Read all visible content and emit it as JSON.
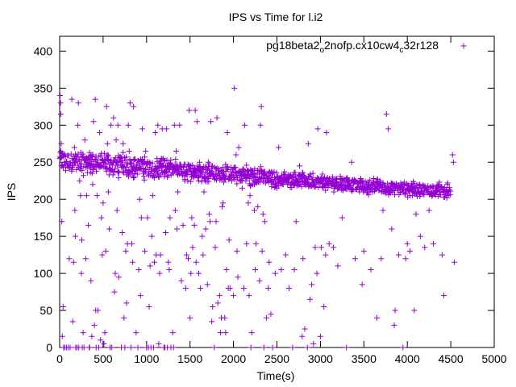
{
  "chart_data": {
    "type": "scatter",
    "title": "IPS vs Time for l.i2",
    "xlabel": "Time(s)",
    "ylabel": "IPS",
    "xlim": [
      0,
      5000
    ],
    "ylim": [
      0,
      420
    ],
    "xticks": [
      "0",
      "500",
      "1000",
      "1500",
      "2000",
      "2500",
      "3000",
      "3500",
      "4000",
      "4500",
      "5000"
    ],
    "yticks": [
      "0",
      "50",
      "100",
      "150",
      "200",
      "250",
      "300",
      "350",
      "400"
    ],
    "grid": false,
    "legend_position": "top-right",
    "series": [
      {
        "name_parts": [
          "pg18beta2",
          "o",
          "2nofp.cx10cw4",
          "c",
          "32r128"
        ],
        "color": "#9400d3",
        "marker": "plus",
        "x": [],
        "y": []
      }
    ],
    "main_band": [
      [
        0,
        252
      ],
      [
        500,
        248
      ],
      [
        1000,
        243
      ],
      [
        1500,
        238
      ],
      [
        2000,
        235
      ],
      [
        2500,
        228
      ],
      [
        3000,
        223
      ],
      [
        3500,
        218
      ],
      [
        4000,
        214
      ],
      [
        4450,
        212
      ]
    ],
    "points": [
      [
        5,
        340
      ],
      [
        10,
        330
      ],
      [
        12,
        315
      ],
      [
        18,
        275
      ],
      [
        20,
        245
      ],
      [
        25,
        170
      ],
      [
        30,
        15
      ],
      [
        40,
        55
      ],
      [
        45,
        0
      ],
      [
        60,
        0
      ],
      [
        80,
        0
      ],
      [
        100,
        0
      ],
      [
        110,
        120
      ],
      [
        120,
        0
      ],
      [
        140,
        335
      ],
      [
        150,
        35
      ],
      [
        160,
        115
      ],
      [
        170,
        270
      ],
      [
        175,
        185
      ],
      [
        180,
        150
      ],
      [
        185,
        0
      ],
      [
        200,
        0
      ],
      [
        210,
        300
      ],
      [
        215,
        330
      ],
      [
        220,
        0
      ],
      [
        230,
        225
      ],
      [
        240,
        205
      ],
      [
        250,
        100
      ],
      [
        255,
        145
      ],
      [
        260,
        0
      ],
      [
        270,
        20
      ],
      [
        280,
        0
      ],
      [
        290,
        280
      ],
      [
        300,
        120
      ],
      [
        310,
        205
      ],
      [
        320,
        255
      ],
      [
        330,
        165
      ],
      [
        340,
        0
      ],
      [
        345,
        0
      ],
      [
        360,
        90
      ],
      [
        370,
        15
      ],
      [
        380,
        220
      ],
      [
        390,
        305
      ],
      [
        400,
        30
      ],
      [
        410,
        335
      ],
      [
        415,
        50
      ],
      [
        420,
        0
      ],
      [
        430,
        205
      ],
      [
        440,
        50
      ],
      [
        450,
        0
      ],
      [
        460,
        290
      ],
      [
        470,
        10
      ],
      [
        480,
        175
      ],
      [
        490,
        125
      ],
      [
        500,
        195
      ],
      [
        510,
        5
      ],
      [
        520,
        20
      ],
      [
        530,
        130
      ],
      [
        540,
        325
      ],
      [
        550,
        275
      ],
      [
        560,
        210
      ],
      [
        570,
        160
      ],
      [
        580,
        0
      ],
      [
        590,
        300
      ],
      [
        600,
        0
      ],
      [
        620,
        310
      ],
      [
        630,
        75
      ],
      [
        640,
        100
      ],
      [
        650,
        280
      ],
      [
        660,
        185
      ],
      [
        670,
        300
      ],
      [
        680,
        95
      ],
      [
        700,
        255
      ],
      [
        710,
        0
      ],
      [
        720,
        155
      ],
      [
        730,
        275
      ],
      [
        740,
        40
      ],
      [
        750,
        0
      ],
      [
        760,
        130
      ],
      [
        770,
        60
      ],
      [
        780,
        140
      ],
      [
        790,
        300
      ],
      [
        800,
        265
      ],
      [
        810,
        330
      ],
      [
        820,
        0
      ],
      [
        830,
        140
      ],
      [
        840,
        115
      ],
      [
        850,
        325
      ],
      [
        860,
        230
      ],
      [
        880,
        20
      ],
      [
        900,
        0
      ],
      [
        910,
        105
      ],
      [
        920,
        200
      ],
      [
        930,
        70
      ],
      [
        940,
        175
      ],
      [
        950,
        295
      ],
      [
        960,
        250
      ],
      [
        980,
        130
      ],
      [
        990,
        265
      ],
      [
        1000,
        0
      ],
      [
        1010,
        175
      ],
      [
        1020,
        0
      ],
      [
        1030,
        55
      ],
      [
        1040,
        110
      ],
      [
        1050,
        0
      ],
      [
        1060,
        150
      ],
      [
        1070,
        205
      ],
      [
        1080,
        0
      ],
      [
        1090,
        115
      ],
      [
        1100,
        290
      ],
      [
        1110,
        125
      ],
      [
        1120,
        255
      ],
      [
        1130,
        300
      ],
      [
        1140,
        5
      ],
      [
        1150,
        100
      ],
      [
        1160,
        125
      ],
      [
        1170,
        255
      ],
      [
        1180,
        295
      ],
      [
        1200,
        0
      ],
      [
        1210,
        0
      ],
      [
        1220,
        155
      ],
      [
        1230,
        295
      ],
      [
        1240,
        0
      ],
      [
        1250,
        115
      ],
      [
        1260,
        105
      ],
      [
        1270,
        175
      ],
      [
        1280,
        0
      ],
      [
        1300,
        20
      ],
      [
        1310,
        0
      ],
      [
        1320,
        300
      ],
      [
        1330,
        185
      ],
      [
        1340,
        265
      ],
      [
        1350,
        160
      ],
      [
        1360,
        210
      ],
      [
        1380,
        300
      ],
      [
        1400,
        90
      ],
      [
        1420,
        165
      ],
      [
        1440,
        225
      ],
      [
        1450,
        80
      ],
      [
        1460,
        125
      ],
      [
        1480,
        120
      ],
      [
        1490,
        320
      ],
      [
        1500,
        40
      ],
      [
        1510,
        100
      ],
      [
        1520,
        175
      ],
      [
        1530,
        135
      ],
      [
        1550,
        165
      ],
      [
        1560,
        320
      ],
      [
        1570,
        115
      ],
      [
        1580,
        305
      ],
      [
        1600,
        100
      ],
      [
        1610,
        250
      ],
      [
        1620,
        80
      ],
      [
        1640,
        150
      ],
      [
        1650,
        125
      ],
      [
        1660,
        210
      ],
      [
        1680,
        160
      ],
      [
        1700,
        85
      ],
      [
        1710,
        250
      ],
      [
        1720,
        180
      ],
      [
        1730,
        170
      ],
      [
        1740,
        305
      ],
      [
        1750,
        35
      ],
      [
        1760,
        55
      ],
      [
        1780,
        0
      ],
      [
        1790,
        135
      ],
      [
        1800,
        170
      ],
      [
        1810,
        310
      ],
      [
        1820,
        60
      ],
      [
        1840,
        70
      ],
      [
        1850,
        20
      ],
      [
        1860,
        40
      ],
      [
        1870,
        190
      ],
      [
        1880,
        195
      ],
      [
        1900,
        40
      ],
      [
        1910,
        20
      ],
      [
        1920,
        105
      ],
      [
        1930,
        290
      ],
      [
        1940,
        80
      ],
      [
        1950,
        145
      ],
      [
        1960,
        80
      ],
      [
        1980,
        225
      ],
      [
        2000,
        70
      ],
      [
        2010,
        350
      ],
      [
        2030,
        260
      ],
      [
        2040,
        130
      ],
      [
        2050,
        95
      ],
      [
        2060,
        270
      ],
      [
        2080,
        225
      ],
      [
        2100,
        215
      ],
      [
        2120,
        80
      ],
      [
        2130,
        300
      ],
      [
        2150,
        140
      ],
      [
        2170,
        195
      ],
      [
        2180,
        70
      ],
      [
        2190,
        205
      ],
      [
        2200,
        0
      ],
      [
        2210,
        20
      ],
      [
        2220,
        220
      ],
      [
        2240,
        185
      ],
      [
        2250,
        105
      ],
      [
        2260,
        140
      ],
      [
        2280,
        190
      ],
      [
        2300,
        90
      ],
      [
        2310,
        300
      ],
      [
        2320,
        325
      ],
      [
        2330,
        130
      ],
      [
        2340,
        180
      ],
      [
        2350,
        0
      ],
      [
        2360,
        170
      ],
      [
        2380,
        40
      ],
      [
        2400,
        80
      ],
      [
        2410,
        115
      ],
      [
        2430,
        45
      ],
      [
        2450,
        0
      ],
      [
        2480,
        100
      ],
      [
        2500,
        215
      ],
      [
        2520,
        270
      ],
      [
        2550,
        105
      ],
      [
        2600,
        125
      ],
      [
        2640,
        80
      ],
      [
        2680,
        0
      ],
      [
        2700,
        105
      ],
      [
        2720,
        170
      ],
      [
        2760,
        245
      ],
      [
        2790,
        15
      ],
      [
        2800,
        120
      ],
      [
        2820,
        25
      ],
      [
        2850,
        0
      ],
      [
        2860,
        275
      ],
      [
        2880,
        65
      ],
      [
        2900,
        85
      ],
      [
        2920,
        5
      ],
      [
        2940,
        135
      ],
      [
        2960,
        100
      ],
      [
        2970,
        295
      ],
      [
        3000,
        15
      ],
      [
        3010,
        135
      ],
      [
        3040,
        55
      ],
      [
        3060,
        125
      ],
      [
        3070,
        290
      ],
      [
        3100,
        140
      ],
      [
        3150,
        135
      ],
      [
        3200,
        110
      ],
      [
        3250,
        175
      ],
      [
        3300,
        0
      ],
      [
        3360,
        250
      ],
      [
        3400,
        120
      ],
      [
        3450,
        210
      ],
      [
        3480,
        85
      ],
      [
        3500,
        130
      ],
      [
        3530,
        220
      ],
      [
        3580,
        105
      ],
      [
        3600,
        210
      ],
      [
        3650,
        40
      ],
      [
        3700,
        120
      ],
      [
        3720,
        185
      ],
      [
        3760,
        315
      ],
      [
        3780,
        295
      ],
      [
        3820,
        160
      ],
      [
        3850,
        30
      ],
      [
        3860,
        50
      ],
      [
        3900,
        125
      ],
      [
        3950,
        0
      ],
      [
        3980,
        120
      ],
      [
        4000,
        140
      ],
      [
        4030,
        130
      ],
      [
        4080,
        50
      ],
      [
        4100,
        180
      ],
      [
        4150,
        150
      ],
      [
        4200,
        135
      ],
      [
        4250,
        185
      ],
      [
        4300,
        140
      ],
      [
        4400,
        125
      ],
      [
        4420,
        70
      ],
      [
        4460,
        220
      ],
      [
        4520,
        260
      ],
      [
        4530,
        250
      ],
      [
        4540,
        115
      ]
    ]
  }
}
